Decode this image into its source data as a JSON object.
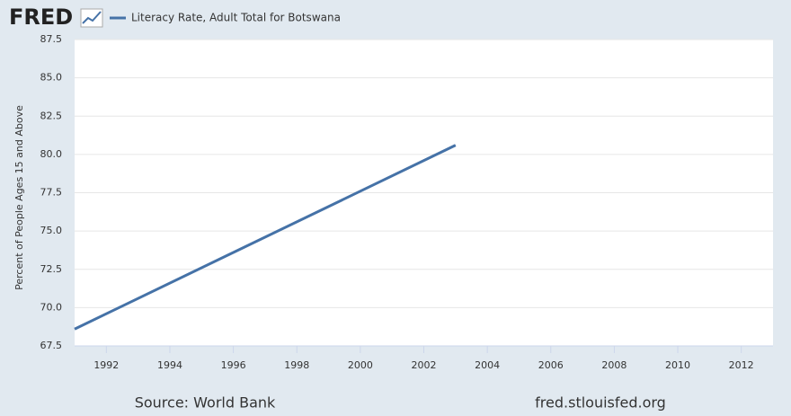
{
  "chart_data": {
    "type": "line",
    "logo": "FRED",
    "x": [
      1991,
      2003
    ],
    "series": [
      {
        "name": "Literacy Rate, Adult Total for Botswana",
        "color": "#4572a7",
        "values": [
          68.6,
          80.6
        ]
      }
    ],
    "y_label": "Percent of People Ages 15 and Above",
    "xlim": [
      1991,
      2013
    ],
    "xticks": [
      1992,
      1994,
      1996,
      1998,
      2000,
      2002,
      2004,
      2006,
      2008,
      2010,
      2012
    ],
    "ylim": [
      67.5,
      87.5
    ],
    "yticks": [
      67.5,
      {
        "value": 70,
        "label": "70.0"
      },
      72.5,
      {
        "value": 75,
        "label": "75.0"
      },
      77.5,
      {
        "value": 80,
        "label": "80.0"
      },
      82.5,
      {
        "value": 85,
        "label": "85.0"
      },
      87.5
    ],
    "grid": true,
    "source": "Source: World Bank",
    "site": "fred.stlouisfed.org"
  }
}
